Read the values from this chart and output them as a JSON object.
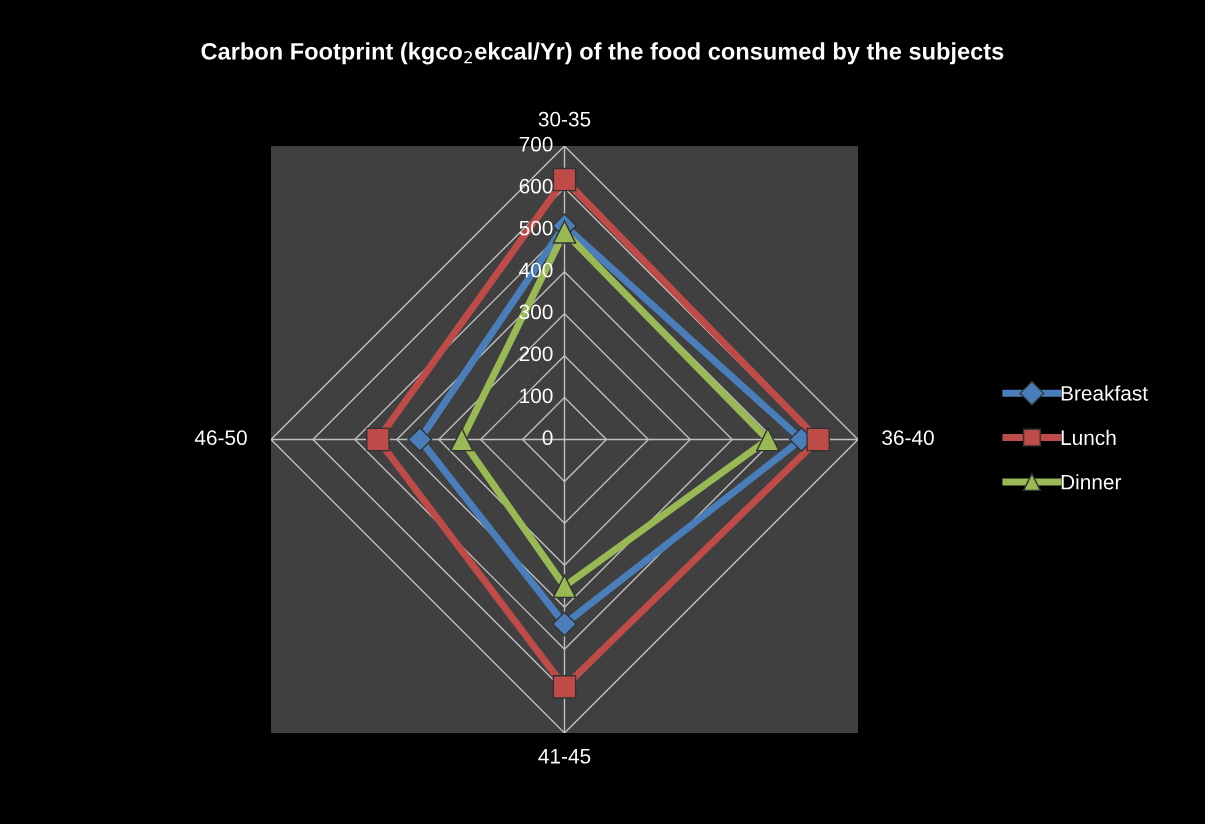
{
  "chart_data": {
    "type": "radar",
    "title": "Carbon Footprint (kgco$_{2}$ekcal/Yr) of the food consumed by the subjects",
    "categories": [
      "30-35",
      "36-40",
      "41-45",
      "46-50"
    ],
    "ylim": [
      0,
      700
    ],
    "yticks": [
      0,
      100,
      200,
      300,
      400,
      500,
      600,
      700
    ],
    "grid": true,
    "legend": "right",
    "series": [
      {
        "name": "Breakfast",
        "color": "#4a7ebb",
        "marker": "diamond",
        "values": [
          510,
          565,
          440,
          345
        ]
      },
      {
        "name": "Lunch",
        "color": "#be4b48",
        "marker": "square",
        "values": [
          620,
          605,
          590,
          445
        ]
      },
      {
        "name": "Dinner",
        "color": "#98b954",
        "marker": "triangle",
        "values": [
          495,
          485,
          350,
          245
        ]
      }
    ]
  }
}
